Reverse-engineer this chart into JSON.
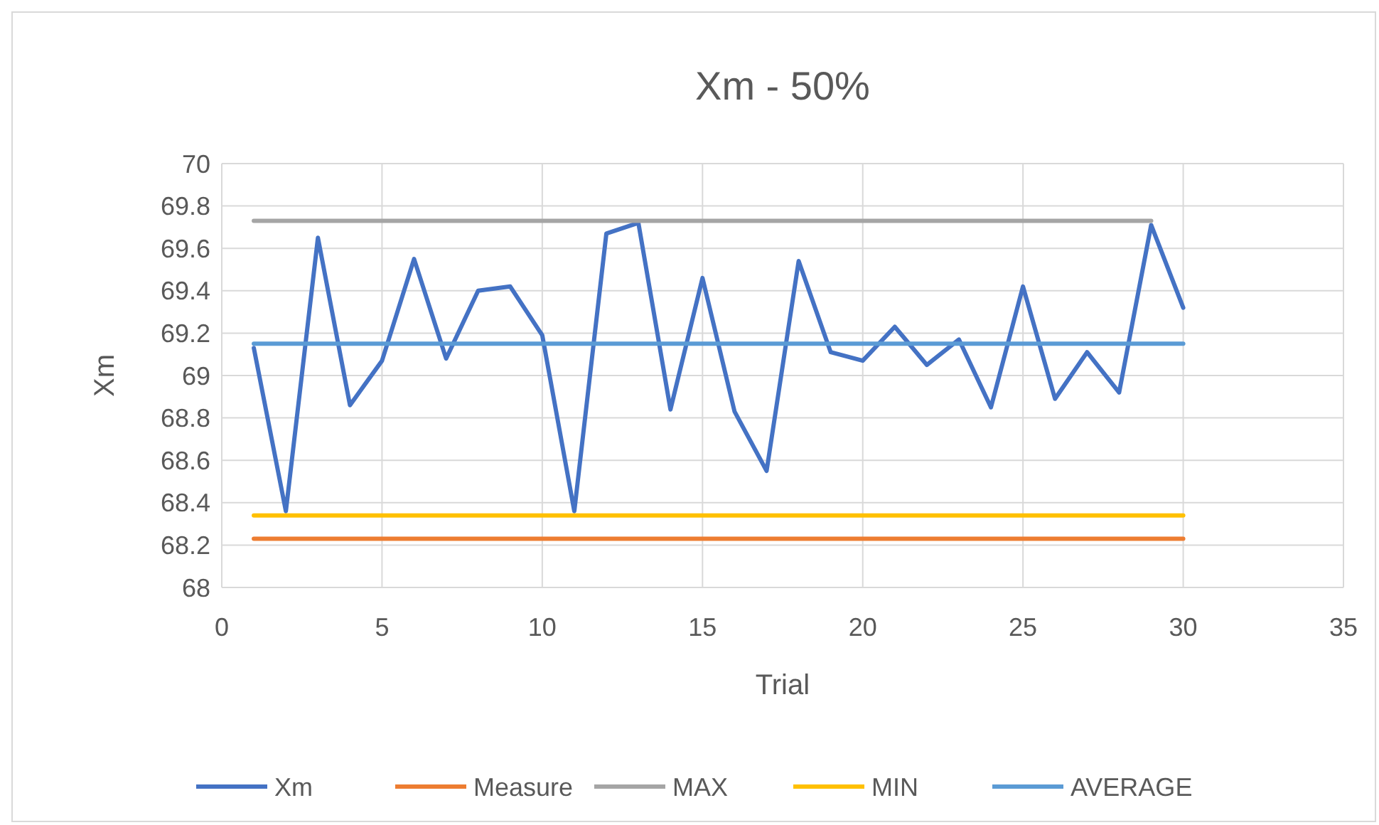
{
  "chart_data": {
    "type": "line",
    "title": "Xm - 50%",
    "xlabel": "Trial",
    "ylabel": "Xm",
    "x": [
      1,
      2,
      3,
      4,
      5,
      6,
      7,
      8,
      9,
      10,
      11,
      12,
      13,
      14,
      15,
      16,
      17,
      18,
      19,
      20,
      21,
      22,
      23,
      24,
      25,
      26,
      27,
      28,
      29,
      30
    ],
    "series": [
      {
        "name": "Xm",
        "color": "#4472c4",
        "values": [
          69.13,
          68.36,
          69.65,
          68.86,
          69.07,
          69.55,
          69.08,
          69.4,
          69.42,
          69.19,
          68.36,
          69.67,
          69.72,
          68.84,
          69.46,
          68.83,
          68.55,
          69.54,
          69.11,
          69.07,
          69.23,
          69.05,
          69.17,
          68.85,
          69.42,
          68.89,
          69.11,
          68.92,
          69.71,
          69.32
        ]
      },
      {
        "name": "Measure",
        "color": "#ed7d31",
        "values": [
          68.23,
          68.23,
          68.23,
          68.23,
          68.23,
          68.23,
          68.23,
          68.23,
          68.23,
          68.23,
          68.23,
          68.23,
          68.23,
          68.23,
          68.23,
          68.23,
          68.23,
          68.23,
          68.23,
          68.23,
          68.23,
          68.23,
          68.23,
          68.23,
          68.23,
          68.23,
          68.23,
          68.23,
          68.23,
          68.23
        ]
      },
      {
        "name": "MAX",
        "color": "#a5a5a5",
        "values": [
          69.73,
          69.73,
          69.73,
          69.73,
          69.73,
          69.73,
          69.73,
          69.73,
          69.73,
          69.73,
          69.73,
          69.73,
          69.73,
          69.73,
          69.73,
          69.73,
          69.73,
          69.73,
          69.73,
          69.73,
          69.73,
          69.73,
          69.73,
          69.73,
          69.73,
          69.73,
          69.73,
          69.73,
          69.73,
          null
        ]
      },
      {
        "name": "MIN",
        "color": "#ffc000",
        "values": [
          68.34,
          68.34,
          68.34,
          68.34,
          68.34,
          68.34,
          68.34,
          68.34,
          68.34,
          68.34,
          68.34,
          68.34,
          68.34,
          68.34,
          68.34,
          68.34,
          68.34,
          68.34,
          68.34,
          68.34,
          68.34,
          68.34,
          68.34,
          68.34,
          68.34,
          68.34,
          68.34,
          68.34,
          68.34,
          68.34
        ]
      },
      {
        "name": "AVERAGE",
        "color": "#5b9bd5",
        "values": [
          69.15,
          69.15,
          69.15,
          69.15,
          69.15,
          69.15,
          69.15,
          69.15,
          69.15,
          69.15,
          69.15,
          69.15,
          69.15,
          69.15,
          69.15,
          69.15,
          69.15,
          69.15,
          69.15,
          69.15,
          69.15,
          69.15,
          69.15,
          69.15,
          69.15,
          69.15,
          69.15,
          69.15,
          69.15,
          69.15
        ]
      }
    ],
    "xlim": [
      0,
      35
    ],
    "xticks": [
      0,
      5,
      10,
      15,
      20,
      25,
      30,
      35
    ],
    "ylim": [
      68,
      70
    ],
    "yticks": [
      68,
      68.2,
      68.4,
      68.6,
      68.8,
      69,
      69.2,
      69.4,
      69.6,
      69.8,
      70
    ],
    "grid": true,
    "legend": "bottom",
    "marker": "none",
    "line_style": "solid"
  }
}
